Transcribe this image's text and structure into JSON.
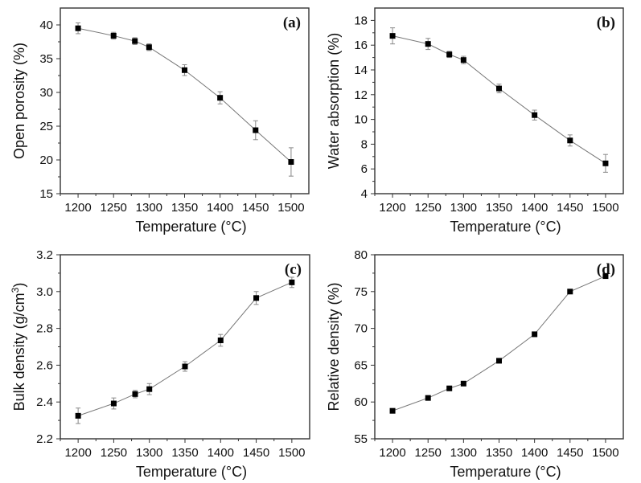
{
  "chart_data": [
    {
      "type": "line",
      "panel_label": "(a)",
      "xlabel": "Temperature (°C)",
      "ylabel": "Open porosity (%)",
      "xlim": [
        1175,
        1525
      ],
      "ylim": [
        15,
        42.5
      ],
      "xticks": [
        1200,
        1250,
        1300,
        1350,
        1400,
        1450,
        1500
      ],
      "yticks": [
        15,
        20,
        25,
        30,
        35,
        40
      ],
      "ytick_labels": [
        "15",
        "20",
        "25",
        "30",
        "35",
        "40"
      ],
      "x": [
        1200,
        1250,
        1280,
        1300,
        1350,
        1400,
        1450,
        1500
      ],
      "values": [
        39.5,
        38.4,
        37.6,
        36.7,
        33.3,
        29.2,
        24.4,
        19.7
      ],
      "errors": [
        0.8,
        0.5,
        0.5,
        0.5,
        0.8,
        0.9,
        1.4,
        2.1
      ]
    },
    {
      "type": "line",
      "panel_label": "(b)",
      "xlabel": "Temperature (°C)",
      "ylabel": "Water absorption (%)",
      "xlim": [
        1175,
        1525
      ],
      "ylim": [
        4,
        19
      ],
      "xticks": [
        1200,
        1250,
        1300,
        1350,
        1400,
        1450,
        1500
      ],
      "yticks": [
        4,
        6,
        8,
        10,
        12,
        14,
        16,
        18
      ],
      "ytick_labels": [
        "4",
        "6",
        "8",
        "10",
        "12",
        "14",
        "16",
        "18"
      ],
      "x": [
        1200,
        1250,
        1280,
        1300,
        1350,
        1400,
        1450,
        1500
      ],
      "values": [
        16.75,
        16.1,
        15.25,
        14.8,
        12.5,
        10.35,
        8.3,
        6.45
      ],
      "errors": [
        0.65,
        0.45,
        0.25,
        0.3,
        0.35,
        0.4,
        0.45,
        0.72
      ]
    },
    {
      "type": "line",
      "panel_label": "(c)",
      "xlabel": "Temperature (°C)",
      "ylabel": "Bulk density (g/cm",
      "ylabel_sup": "3",
      "ylabel_end": ")",
      "xlim": [
        1175,
        1525
      ],
      "ylim": [
        2.2,
        3.2
      ],
      "xticks": [
        1200,
        1250,
        1300,
        1350,
        1400,
        1450,
        1500
      ],
      "yticks": [
        2.2,
        2.4,
        2.6,
        2.8,
        3.0,
        3.2
      ],
      "ytick_labels": [
        "2.2",
        "2.4",
        "2.6",
        "2.8",
        "3.0",
        "3.2"
      ],
      "x": [
        1200,
        1250,
        1280,
        1300,
        1350,
        1400,
        1450,
        1500
      ],
      "values": [
        2.325,
        2.392,
        2.443,
        2.47,
        2.593,
        2.735,
        2.965,
        3.05
      ],
      "errors": [
        0.042,
        0.03,
        0.02,
        0.03,
        0.026,
        0.032,
        0.035,
        0.028
      ]
    },
    {
      "type": "line",
      "panel_label": "(d)",
      "xlabel": "Temperature (°C)",
      "ylabel": "Relative density (%)",
      "xlim": [
        1175,
        1525
      ],
      "ylim": [
        55,
        80
      ],
      "xticks": [
        1200,
        1250,
        1300,
        1350,
        1400,
        1450,
        1500
      ],
      "yticks": [
        55,
        60,
        65,
        70,
        75,
        80
      ],
      "ytick_labels": [
        "55",
        "60",
        "65",
        "70",
        "75",
        "80"
      ],
      "x": [
        1200,
        1250,
        1280,
        1300,
        1350,
        1400,
        1450,
        1500
      ],
      "values": [
        58.8,
        60.55,
        61.85,
        62.5,
        65.6,
        69.2,
        75.0,
        77.1
      ],
      "errors": []
    }
  ]
}
